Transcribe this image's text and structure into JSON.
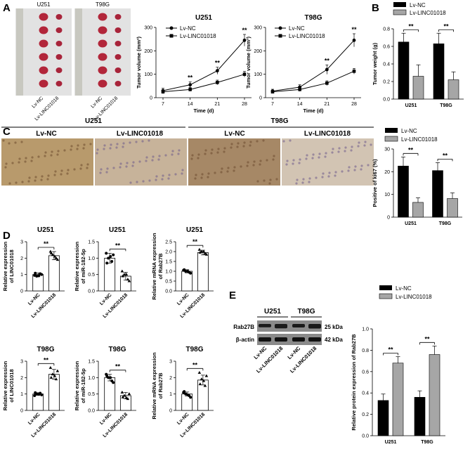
{
  "panel_labels": {
    "a": "A",
    "b": "B",
    "c": "C",
    "d": "D",
    "e": "E"
  },
  "photos": {
    "u251": "U251",
    "t98g": "T98G",
    "lbl_nc": "Lv-NC",
    "lbl_linc": "Lv-LINC01018"
  },
  "legend": {
    "nc": "Lv-NC",
    "linc": "Lv-LINC01018"
  },
  "significance": "**",
  "colors": {
    "nc": "#000000",
    "linc": "#a6a6a6",
    "bar_edge": "#000000"
  },
  "ihc": {
    "group_u251": "U251",
    "group_t98g": "T98G",
    "col_labels": [
      "Lv-NC",
      "Lv-LINC01018",
      "Lv-NC",
      "Lv-LINC01018"
    ],
    "tissue_colors": [
      "#b89a6c",
      "#c7b39a",
      "#a68866",
      "#d2c4b3"
    ]
  },
  "western": {
    "group_u251": "U251",
    "group_t98g": "T98G",
    "rows": [
      "Rab27B",
      "β-actin"
    ],
    "kda": [
      "25 kDa",
      "42 kDa"
    ],
    "lanes": [
      "Lv-NC",
      "Lv-LINC01018",
      "Lv-NC",
      "Lv-LINC01018"
    ]
  },
  "chart_data": [
    {
      "id": "A1",
      "type": "line",
      "title": "U251",
      "xlabel": "Time (d)",
      "ylabel": "Tumor volume (mm³)",
      "x": [
        7,
        14,
        21,
        28
      ],
      "ylim": [
        0,
        300
      ],
      "yticks": [
        0,
        100,
        200,
        300
      ],
      "series": [
        {
          "name": "Lv-NC",
          "values": [
            30,
            55,
            115,
            245
          ],
          "err": [
            10,
            12,
            15,
            25
          ]
        },
        {
          "name": "Lv-LINC01018",
          "values": [
            25,
            35,
            65,
            100
          ],
          "err": [
            8,
            8,
            10,
            12
          ]
        }
      ],
      "annotations": [
        "**",
        "**",
        "**"
      ]
    },
    {
      "id": "A2",
      "type": "line",
      "title": "T98G",
      "xlabel": "Time (d)",
      "ylabel": "Tumor volume (mm³)",
      "x": [
        7,
        14,
        21,
        28
      ],
      "ylim": [
        0,
        300
      ],
      "yticks": [
        0,
        100,
        200,
        300
      ],
      "series": [
        {
          "name": "Lv-NC",
          "values": [
            28,
            45,
            120,
            245
          ],
          "err": [
            8,
            10,
            20,
            28
          ]
        },
        {
          "name": "Lv-LINC01018",
          "values": [
            25,
            35,
            62,
            113
          ],
          "err": [
            6,
            8,
            10,
            12
          ]
        }
      ],
      "annotations": [
        "**",
        "**"
      ]
    },
    {
      "id": "B",
      "type": "bar",
      "ylabel": "Tumor weight (g)",
      "categories": [
        "U251",
        "T98G"
      ],
      "ylim": [
        0,
        0.8
      ],
      "yticks": [
        0.0,
        0.2,
        0.4,
        0.6,
        0.8
      ],
      "series": [
        {
          "name": "Lv-NC",
          "values": [
            0.65,
            0.63
          ],
          "err": [
            0.1,
            0.12
          ]
        },
        {
          "name": "Lv-LINC01018",
          "values": [
            0.26,
            0.22
          ],
          "err": [
            0.13,
            0.09
          ]
        }
      ]
    },
    {
      "id": "C",
      "type": "bar",
      "ylabel": "Positive of ki67 (%)",
      "categories": [
        "U251",
        "T98G"
      ],
      "ylim": [
        0,
        30
      ],
      "yticks": [
        0,
        10,
        20,
        30
      ],
      "series": [
        {
          "name": "Lv-NC",
          "values": [
            22.5,
            20.5
          ],
          "err": [
            4,
            3.5
          ]
        },
        {
          "name": "Lv-LINC01018",
          "values": [
            6.5,
            8.2
          ],
          "err": [
            2,
            2.5
          ]
        }
      ]
    },
    {
      "id": "D1",
      "type": "scatter",
      "title": "U251",
      "ylabel": "Relative expression of LINC01018",
      "categories": [
        "Lv-NC",
        "Lv-LINC01018"
      ],
      "means": [
        1.0,
        2.15
      ],
      "sd": [
        0.1,
        0.25
      ],
      "points": [
        [
          0.95,
          1.05,
          0.9,
          1.0,
          1.08,
          0.92
        ],
        [
          2.4,
          2.0,
          2.2,
          1.9,
          2.3,
          2.1
        ]
      ],
      "ylim": [
        0,
        3
      ],
      "yticks": [
        0,
        1,
        2,
        3
      ]
    },
    {
      "id": "D2",
      "type": "scatter",
      "title": "U251",
      "ylabel": "Relative expression of miR-182-5p",
      "categories": [
        "Lv-NC",
        "Lv-LINC01018"
      ],
      "means": [
        1.0,
        0.45
      ],
      "sd": [
        0.15,
        0.12
      ],
      "points": [
        [
          1.15,
          0.9,
          1.0,
          1.1,
          0.85,
          1.05
        ],
        [
          0.6,
          0.35,
          0.5,
          0.3,
          0.45,
          0.5
        ]
      ],
      "ylim": [
        0,
        1.5
      ],
      "yticks": [
        0.0,
        0.5,
        1.0,
        1.5
      ]
    },
    {
      "id": "D3",
      "type": "scatter",
      "title": "U251",
      "ylabel": "Relative mRNA expression of Rab27B",
      "categories": [
        "Lv-NC",
        "Lv-LINC01018"
      ],
      "means": [
        1.0,
        1.95
      ],
      "sd": [
        0.08,
        0.12
      ],
      "points": [
        [
          1.05,
          0.95,
          1.0,
          0.9,
          1.08,
          1.0
        ],
        [
          2.1,
          1.9,
          2.0,
          1.85,
          1.95,
          2.0
        ]
      ],
      "ylim": [
        0,
        2.5
      ],
      "yticks": [
        0.0,
        0.5,
        1.0,
        1.5,
        2.0,
        2.5
      ]
    },
    {
      "id": "D4",
      "type": "scatter",
      "title": "T98G",
      "ylabel": "Relative expression of LINC01018",
      "categories": [
        "Lv-NC",
        "Lv-LINC01018"
      ],
      "means": [
        1.0,
        2.2
      ],
      "sd": [
        0.08,
        0.3
      ],
      "points": [
        [
          0.9,
          1.05,
          1.0,
          0.95,
          1.08,
          0.98
        ],
        [
          2.6,
          1.9,
          2.2,
          2.4,
          2.0,
          2.1
        ]
      ],
      "ylim": [
        0,
        3
      ],
      "yticks": [
        0,
        1,
        2,
        3
      ]
    },
    {
      "id": "D5",
      "type": "scatter",
      "title": "T98G",
      "ylabel": "Relative expression of miR-182-5p",
      "categories": [
        "Lv-NC",
        "Lv-LINC01018"
      ],
      "means": [
        1.0,
        0.45
      ],
      "sd": [
        0.1,
        0.1
      ],
      "points": [
        [
          1.1,
          0.9,
          1.0,
          0.85,
          1.05,
          1.0
        ],
        [
          0.55,
          0.35,
          0.45,
          0.5,
          0.4,
          0.38
        ]
      ],
      "ylim": [
        0,
        1.5
      ],
      "yticks": [
        0.0,
        0.5,
        1.0,
        1.5
      ]
    },
    {
      "id": "D6",
      "type": "scatter",
      "title": "T98G",
      "ylabel": "Relative mRNA expression of Rab27B",
      "categories": [
        "Lv-NC",
        "Lv-LINC01018"
      ],
      "means": [
        1.0,
        1.85
      ],
      "sd": [
        0.12,
        0.3
      ],
      "points": [
        [
          1.1,
          0.9,
          1.0,
          0.8,
          1.15,
          0.95
        ],
        [
          2.3,
          1.5,
          1.9,
          2.1,
          1.6,
          1.8
        ]
      ],
      "ylim": [
        0,
        3
      ],
      "yticks": [
        0,
        1,
        2,
        3
      ]
    },
    {
      "id": "E",
      "type": "bar",
      "ylabel": "Relative protein expression of Rab27B",
      "categories": [
        "U251",
        "T98G"
      ],
      "ylim": [
        0,
        1.0
      ],
      "yticks": [
        0.0,
        0.2,
        0.4,
        0.6,
        0.8,
        1.0
      ],
      "series": [
        {
          "name": "Lv-NC",
          "values": [
            0.33,
            0.36
          ],
          "err": [
            0.06,
            0.06
          ]
        },
        {
          "name": "Lv-LINC01018",
          "values": [
            0.68,
            0.76
          ],
          "err": [
            0.06,
            0.08
          ]
        }
      ]
    }
  ]
}
